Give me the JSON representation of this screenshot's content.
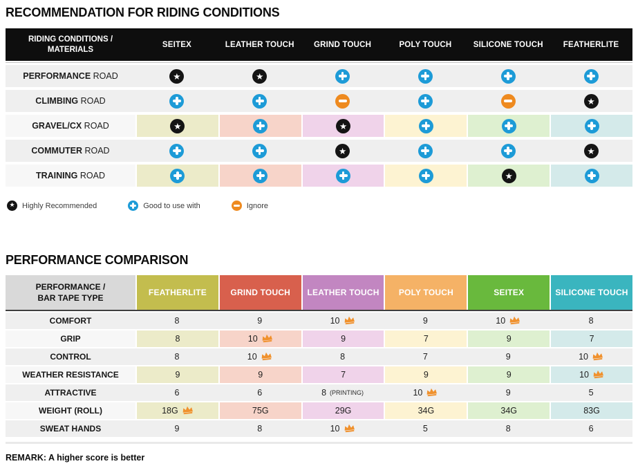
{
  "colors": {
    "header1_bg": "#0e0e0e",
    "header2_label_bg": "#d9d9d9",
    "row_gray": "#efefef",
    "tinted_label_bg": "#f7f7f7",
    "star_bg": "#141414",
    "plus_bg": "#1d9bd7",
    "minus_bg": "#ee8a1f",
    "crown": "#f0912d"
  },
  "chart_data": [
    {
      "type": "table",
      "title": "RECOMMENDATION FOR RIDING CONDITIONS",
      "header_label_line1": "RIDING CONDITIONS /",
      "header_label_line2": "MATERIALS",
      "columns": [
        "SEITEX",
        "LEATHER TOUCH",
        "GRIND TOUCH",
        "POLY TOUCH",
        "SILICONE TOUCH",
        "FEATHERLITE"
      ],
      "column_tints": [
        "#ecebc9",
        "#f7d4c9",
        "#f0d3ea",
        "#fdf3d2",
        "#def0d0",
        "#d4eaea"
      ],
      "icon_legend": [
        {
          "icon": "star",
          "label": "Highly Recommended"
        },
        {
          "icon": "plus",
          "label": "Good to use with"
        },
        {
          "icon": "minus",
          "label": "Ignore"
        }
      ],
      "rows": [
        {
          "label_bold": "PERFORMANCE",
          "label_rest": " ROAD",
          "tinted": false,
          "cells": [
            "star",
            "star",
            "plus",
            "plus",
            "plus",
            "plus"
          ]
        },
        {
          "label_bold": "CLIMBING",
          "label_rest": " ROAD",
          "tinted": false,
          "cells": [
            "plus",
            "plus",
            "minus",
            "plus",
            "minus",
            "star"
          ]
        },
        {
          "label_bold": "GRAVEL/CX",
          "label_rest": " ROAD",
          "tinted": true,
          "cells": [
            "star",
            "plus",
            "star",
            "plus",
            "plus",
            "plus"
          ]
        },
        {
          "label_bold": "COMMUTER",
          "label_rest": " ROAD",
          "tinted": false,
          "cells": [
            "plus",
            "plus",
            "star",
            "plus",
            "plus",
            "star"
          ]
        },
        {
          "label_bold": "TRAINING",
          "label_rest": " ROAD",
          "tinted": true,
          "cells": [
            "plus",
            "plus",
            "plus",
            "plus",
            "star",
            "plus"
          ]
        }
      ]
    },
    {
      "type": "table",
      "title": "PERFORMANCE COMPARISON",
      "header_label_line1": "PERFORMANCE /",
      "header_label_line2": "BAR TAPE TYPE",
      "columns": [
        {
          "label": "FEATHERLITE",
          "color": "#c3bd4e",
          "tint": "#ecebc9"
        },
        {
          "label": "GRIND TOUCH",
          "color": "#d8604d",
          "tint": "#f7d4c9"
        },
        {
          "label": "LEATHER TOUCH",
          "color": "#c286c1",
          "tint": "#f0d3ea"
        },
        {
          "label": "POLY TOUCH",
          "color": "#f5b266",
          "tint": "#fdf3d2"
        },
        {
          "label": "SEITEX",
          "color": "#69b93d",
          "tint": "#def0d0"
        },
        {
          "label": "SILICONE TOUCH",
          "color": "#3ab5bf",
          "tint": "#d4eaea"
        }
      ],
      "rows": [
        {
          "label": "COMFORT",
          "tinted": false,
          "cells": [
            {
              "v": "8"
            },
            {
              "v": "9"
            },
            {
              "v": "10",
              "crown": true
            },
            {
              "v": "9"
            },
            {
              "v": "10",
              "crown": true
            },
            {
              "v": "8"
            }
          ]
        },
        {
          "label": "GRIP",
          "tinted": true,
          "cells": [
            {
              "v": "8"
            },
            {
              "v": "10",
              "crown": true
            },
            {
              "v": "9"
            },
            {
              "v": "7"
            },
            {
              "v": "9"
            },
            {
              "v": "7"
            }
          ]
        },
        {
          "label": "CONTROL",
          "tinted": false,
          "cells": [
            {
              "v": "8"
            },
            {
              "v": "10",
              "crown": true
            },
            {
              "v": "8"
            },
            {
              "v": "7"
            },
            {
              "v": "9"
            },
            {
              "v": "10",
              "crown": true
            }
          ]
        },
        {
          "label": "WEATHER RESISTANCE",
          "tinted": true,
          "cells": [
            {
              "v": "9"
            },
            {
              "v": "9"
            },
            {
              "v": "7"
            },
            {
              "v": "9"
            },
            {
              "v": "9"
            },
            {
              "v": "10",
              "crown": true
            }
          ]
        },
        {
          "label": "ATTRACTIVE",
          "tinted": false,
          "cells": [
            {
              "v": "6"
            },
            {
              "v": "6"
            },
            {
              "v": "8",
              "suffix": "(PRINTING)"
            },
            {
              "v": "10",
              "crown": true
            },
            {
              "v": "9"
            },
            {
              "v": "5"
            }
          ]
        },
        {
          "label": "WEIGHT (ROLL)",
          "tinted": true,
          "cells": [
            {
              "v": "18G",
              "crown": true
            },
            {
              "v": "75G"
            },
            {
              "v": "29G"
            },
            {
              "v": "34G"
            },
            {
              "v": "34G"
            },
            {
              "v": "83G"
            }
          ]
        },
        {
          "label": "SWEAT HANDS",
          "tinted": false,
          "cells": [
            {
              "v": "9"
            },
            {
              "v": "8"
            },
            {
              "v": "10",
              "crown": true
            },
            {
              "v": "5"
            },
            {
              "v": "8"
            },
            {
              "v": "6"
            }
          ]
        }
      ],
      "remark": "REMARK: A higher score is better"
    }
  ]
}
